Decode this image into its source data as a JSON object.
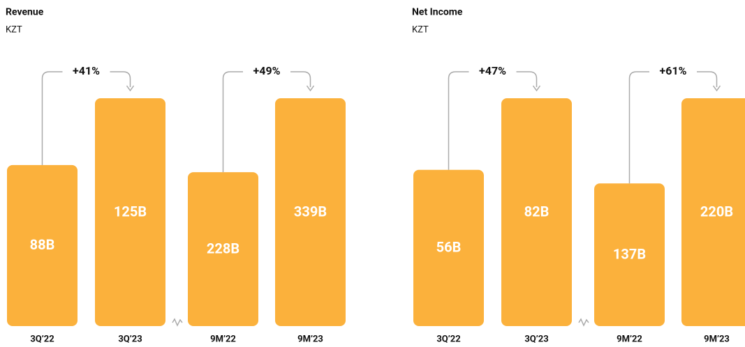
{
  "chart_data": [
    {
      "type": "bar",
      "title": "Revenue",
      "subtitle": "KZT",
      "color": "#fbb13c",
      "categories": [
        "3Q’22",
        "3Q’23",
        "9M’22",
        "9M’23"
      ],
      "values": [
        88,
        125,
        228,
        339
      ],
      "value_labels": [
        "88B",
        "125B",
        "228B",
        "339B"
      ],
      "annotations": [
        "+41%",
        "+49%"
      ]
    },
    {
      "type": "bar",
      "title": "Net Income",
      "subtitle": "KZT",
      "color": "#fbb13c",
      "categories": [
        "3Q’22",
        "3Q’23",
        "9M’22",
        "9M’23"
      ],
      "values": [
        56,
        82,
        137,
        220
      ],
      "value_labels": [
        "56B",
        "82B",
        "137B",
        "220B"
      ],
      "annotations": [
        "+47%",
        "+61%"
      ]
    }
  ]
}
